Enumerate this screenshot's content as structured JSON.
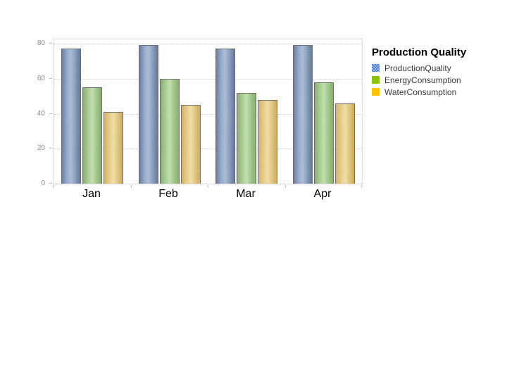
{
  "chart_data": {
    "type": "bar",
    "title": "Production Quality",
    "categories": [
      "Jan",
      "Feb",
      "Mar",
      "Apr"
    ],
    "series": [
      {
        "name": "ProductionQuality",
        "legend_color": "#4a7ed0",
        "bar_color": "#8ca3c8",
        "values": [
          77,
          79,
          77,
          79
        ]
      },
      {
        "name": "EnergyConsumption",
        "legend_color": "#8cc308",
        "bar_color": "#abd392",
        "values": [
          55,
          60,
          52,
          58
        ]
      },
      {
        "name": "WaterConsumption",
        "legend_color": "#fdc300",
        "bar_color": "#ecd289",
        "values": [
          41,
          45,
          48,
          46
        ]
      }
    ],
    "xlabel": "",
    "ylabel": "",
    "ylim": [
      0,
      80
    ],
    "yticks": [
      0,
      20,
      40,
      60,
      80
    ],
    "grid": true,
    "gridline_style": "dotted",
    "axis_label_color": "#8b8b8b",
    "legend_position": "top-right"
  }
}
